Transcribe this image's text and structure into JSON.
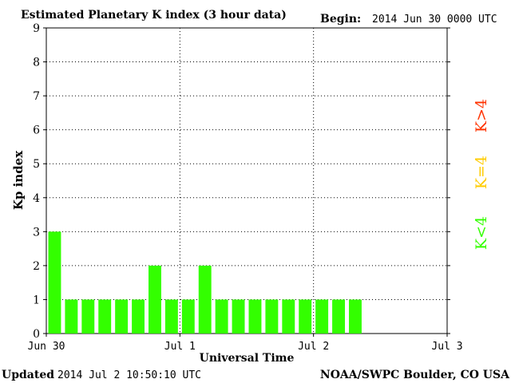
{
  "header": {
    "title": "Estimated Planetary K index (3 hour data)",
    "begin_label": "Begin:",
    "begin_value": "2014 Jun 30 0000 UTC"
  },
  "footer": {
    "updated_label": "Updated",
    "updated_value": "2014 Jul  2 10:50:10 UTC",
    "source": "NOAA/SWPC Boulder, CO USA"
  },
  "legend": {
    "red_label": "K>4",
    "yellow_label": "K=4",
    "green_label": "K<4"
  },
  "colors": {
    "bar_green": "#33ff00",
    "legend_red": "#ff3300",
    "legend_yellow": "#ffcc00",
    "legend_green": "#33ff00"
  },
  "chart_data": {
    "type": "bar",
    "title": "Estimated Planetary K index (3 hour data)",
    "xlabel": "Universal Time",
    "ylabel": "Kp index",
    "ylim": [
      0,
      9
    ],
    "yticks": [
      0,
      1,
      2,
      3,
      4,
      5,
      6,
      7,
      8,
      9
    ],
    "x_range_hours": [
      0,
      72
    ],
    "xticks": [
      {
        "hours": 0,
        "label": "Jun 30"
      },
      {
        "hours": 24,
        "label": "Jul 1"
      },
      {
        "hours": 48,
        "label": "Jul 2"
      },
      {
        "hours": 72,
        "label": "Jul 3"
      }
    ],
    "grid": true,
    "interval_hours": 3,
    "values": [
      3,
      1,
      1,
      1,
      1,
      1,
      2,
      1,
      1,
      2,
      1,
      1,
      1,
      1,
      1,
      1,
      1,
      1,
      1
    ]
  }
}
